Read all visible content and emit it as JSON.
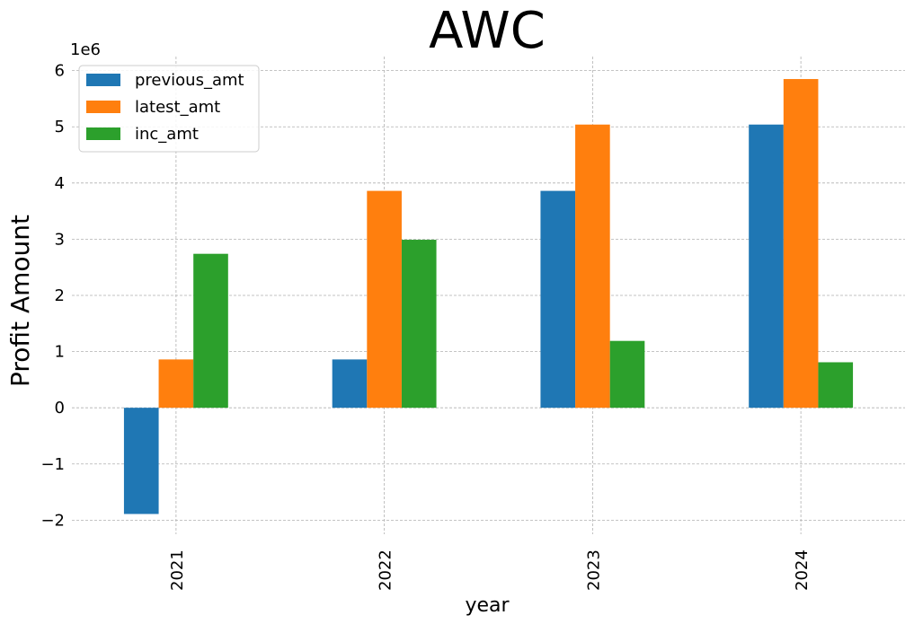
{
  "chart_data": {
    "type": "bar",
    "title": "AWC",
    "xlabel": "year",
    "ylabel": "Profit Amount",
    "y_offset_label": "1e6",
    "categories": [
      "2021",
      "2022",
      "2023",
      "2024"
    ],
    "series": [
      {
        "name": "previous_amt",
        "color": "#1f77b4",
        "values": [
          -1890000,
          860000,
          3860000,
          5040000
        ]
      },
      {
        "name": "latest_amt",
        "color": "#ff7f0e",
        "values": [
          860000,
          3860000,
          5040000,
          5850000
        ]
      },
      {
        "name": "inc_amt",
        "color": "#2ca02c",
        "values": [
          2740000,
          2990000,
          1190000,
          810000
        ]
      }
    ],
    "ylim": [
      -2250000,
      6250000
    ],
    "yticks": [
      -2,
      -1,
      0,
      1,
      2,
      3,
      4,
      5,
      6
    ],
    "ytick_labels": [
      "−2",
      "−1",
      "0",
      "1",
      "2",
      "3",
      "4",
      "5",
      "6"
    ],
    "grid": true,
    "legend_position": "top-left"
  }
}
